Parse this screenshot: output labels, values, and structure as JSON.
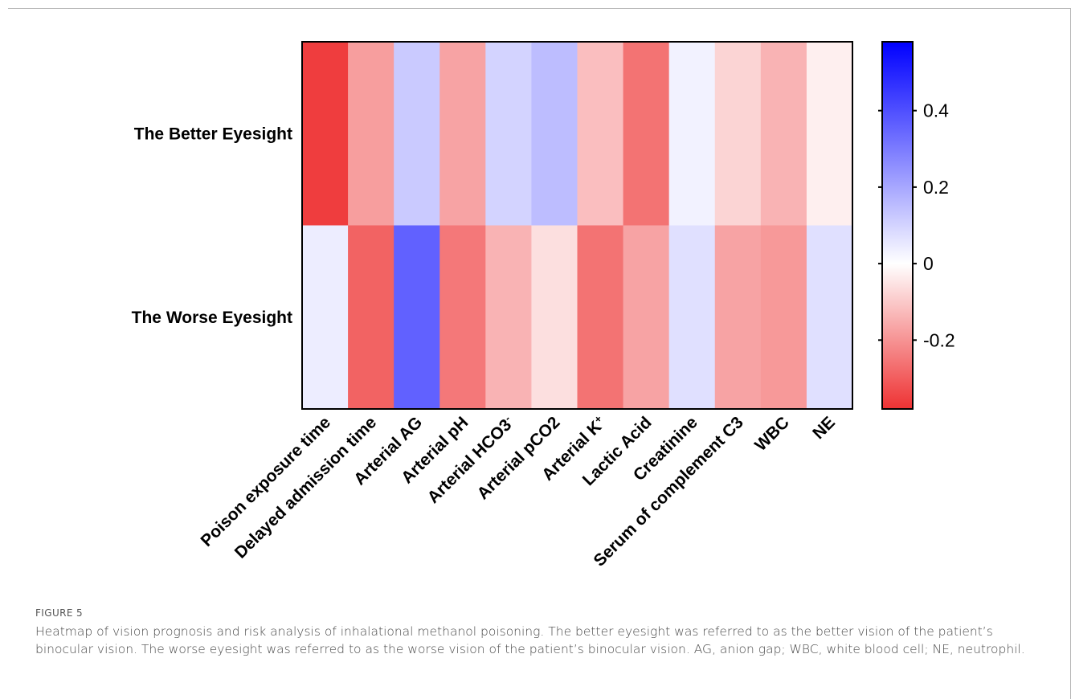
{
  "chart_data": {
    "type": "heatmap",
    "rows": [
      "The Better Eyesight",
      "The Worse Eyesight"
    ],
    "columns": [
      "Poison exposure time",
      "Delayed admission time",
      "Arterial AG",
      "Arterial pH",
      "Arterial HCO3",
      "Arterial  pCO2",
      "Arterial K",
      "Lactic Acid",
      "Creatinine",
      "Serum of complement C3",
      "WBC",
      "NE"
    ],
    "column_superscripts": [
      "",
      "",
      "",
      "",
      "-",
      "",
      "+",
      "",
      "",
      "",
      "",
      ""
    ],
    "values": [
      [
        -0.36,
        -0.18,
        0.12,
        -0.17,
        0.1,
        0.15,
        -0.12,
        -0.26,
        0.03,
        -0.08,
        -0.14,
        -0.03
      ],
      [
        0.04,
        -0.29,
        0.36,
        -0.25,
        -0.14,
        -0.06,
        -0.26,
        -0.17,
        0.07,
        -0.17,
        -0.19,
        0.07
      ]
    ],
    "colorbar": {
      "min": -0.38,
      "max": 0.58,
      "ticks": [
        -0.2,
        0,
        0.2,
        0.4
      ],
      "tick_labels": [
        "-0.2",
        "0",
        "0.2",
        "0.4"
      ],
      "color_low": "#ee3233",
      "color_mid": "#ffffff",
      "color_high": "#0000ff"
    }
  },
  "caption": {
    "label": "FIGURE 5",
    "text": "Heatmap of vision prognosis and risk analysis of inhalational methanol poisoning. The better eyesight was referred to as the better vision of the patient’s binocular vision. The worse eyesight was referred to as the worse vision of the patient’s binocular vision. AG, anion gap; WBC, white blood cell; NE, neutrophil."
  }
}
